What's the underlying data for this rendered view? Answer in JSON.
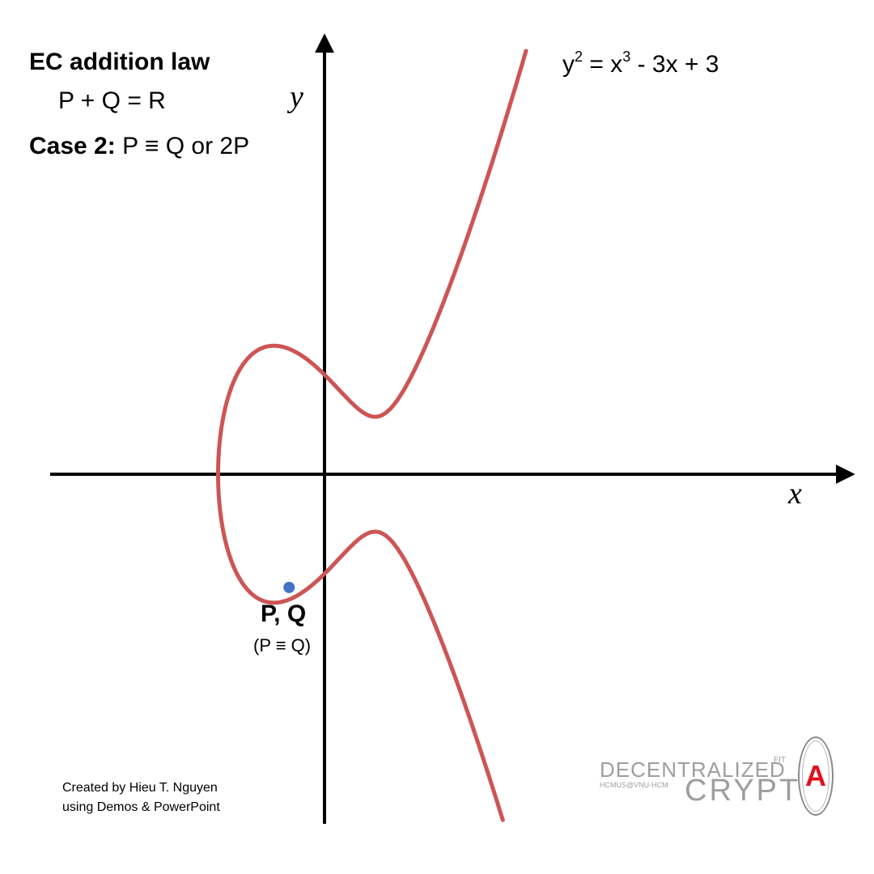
{
  "title": "EC addition law",
  "equation": "P + Q = R",
  "case": {
    "label": "Case 2:",
    "text": "P ≡ Q or 2P"
  },
  "curve": {
    "equation_parts": {
      "y": "y",
      "y_exp": "2",
      "eq": " = x",
      "x_exp": "3",
      "rest": " - 3x + 3"
    },
    "a": -3,
    "b": 3,
    "color": "#cd5555"
  },
  "axes": {
    "x_label": "x",
    "y_label": "y",
    "color": "#000000"
  },
  "point": {
    "label": "P, Q",
    "note": "(P ≡ Q)",
    "x": -0.7,
    "y": -1.97,
    "color": "#4472c4"
  },
  "credit": {
    "line1": "Created by Hieu T. Nguyen",
    "line2": "using Demos & PowerPoint"
  },
  "logo": {
    "line1": "DECENTRALIZED",
    "fit": "FIT",
    "sub": "HCMUS@VNU-HCM",
    "word": "CRYPT",
    "letter": "A",
    "accent_color": "#e0121b"
  }
}
